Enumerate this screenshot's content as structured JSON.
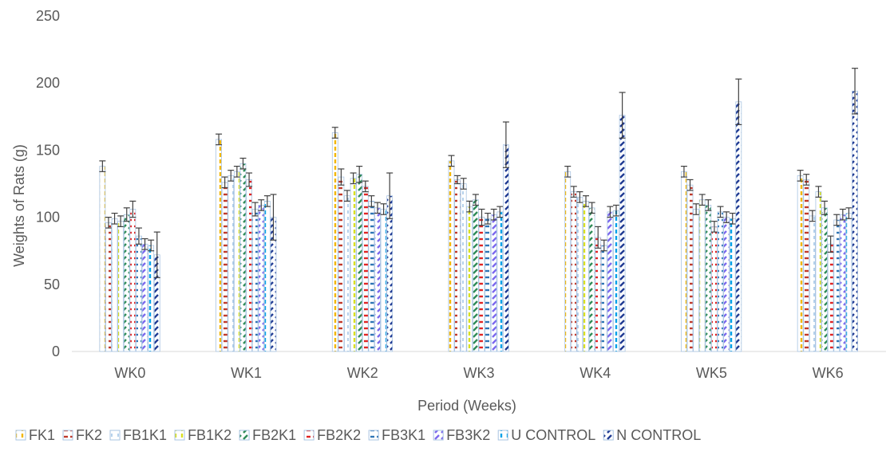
{
  "chart_data": {
    "type": "bar",
    "title": "",
    "xlabel": "Period (Weeks)",
    "ylabel": "Weights of Rats (g)",
    "ylim": [
      0,
      250
    ],
    "yticks": [
      0,
      50,
      100,
      150,
      200,
      250
    ],
    "grid": false,
    "legend_position": "bottom",
    "categories": [
      "WK0",
      "WK1",
      "WK2",
      "WK3",
      "WK4",
      "WK5",
      "WK6"
    ],
    "series": [
      {
        "name": "FK1",
        "color": "#F2B705",
        "pattern": "vertical-dash",
        "values": [
          138,
          158,
          163,
          142,
          134,
          134,
          131
        ],
        "errors": [
          4,
          4,
          4,
          4,
          4,
          4,
          4
        ]
      },
      {
        "name": "FK2",
        "color": "#C0392B",
        "pattern": "horizontal-dash",
        "values": [
          96,
          126,
          130,
          128,
          119,
          124,
          128
        ],
        "errors": [
          4,
          4,
          6,
          3,
          4,
          4,
          4
        ]
      },
      {
        "name": "FB1K1",
        "color": "#9DC3E6",
        "pattern": "light-dash",
        "values": [
          99,
          131,
          116,
          125,
          115,
          106,
          101
        ],
        "errors": [
          4,
          4,
          4,
          4,
          4,
          4,
          4
        ]
      },
      {
        "name": "FB1K2",
        "color": "#D9E021",
        "pattern": "vertical-dash",
        "values": [
          97,
          134,
          129,
          108,
          112,
          113,
          119
        ],
        "errors": [
          4,
          4,
          4,
          4,
          4,
          4,
          4
        ]
      },
      {
        "name": "FB2K1",
        "color": "#2E8B57",
        "pattern": "diagonal-dash",
        "values": [
          102,
          140,
          132,
          113,
          107,
          109,
          107
        ],
        "errors": [
          5,
          4,
          6,
          4,
          4,
          4,
          5
        ]
      },
      {
        "name": "FB2K2",
        "color": "#E02424",
        "pattern": "horizontal-dash",
        "values": [
          106,
          128,
          123,
          100,
          85,
          93,
          80
        ],
        "errors": [
          6,
          5,
          4,
          6,
          8,
          4,
          6
        ]
      },
      {
        "name": "FB3K1",
        "color": "#2F75B5",
        "pattern": "horizontal-dash",
        "values": [
          86,
          106,
          112,
          99,
          79,
          104,
          98
        ],
        "errors": [
          6,
          5,
          4,
          4,
          4,
          4,
          4
        ]
      },
      {
        "name": "FB3K2",
        "color": "#7B68EE",
        "pattern": "diagonal-dash",
        "values": [
          80,
          109,
          107,
          102,
          104,
          100,
          102
        ],
        "errors": [
          4,
          4,
          4,
          4,
          4,
          4,
          4
        ]
      },
      {
        "name": "U CONTROL",
        "color": "#00A2E8",
        "pattern": "vertical-dash",
        "values": [
          79,
          112,
          106,
          104,
          105,
          99,
          103
        ],
        "errors": [
          4,
          4,
          4,
          4,
          4,
          4,
          4
        ]
      },
      {
        "name": "N CONTROL",
        "color": "#1F3A93",
        "pattern": "diagonal-dash",
        "values": [
          72,
          100,
          116,
          154,
          176,
          186,
          194
        ],
        "errors": [
          17,
          17,
          17,
          17,
          17,
          17,
          17
        ]
      }
    ]
  }
}
